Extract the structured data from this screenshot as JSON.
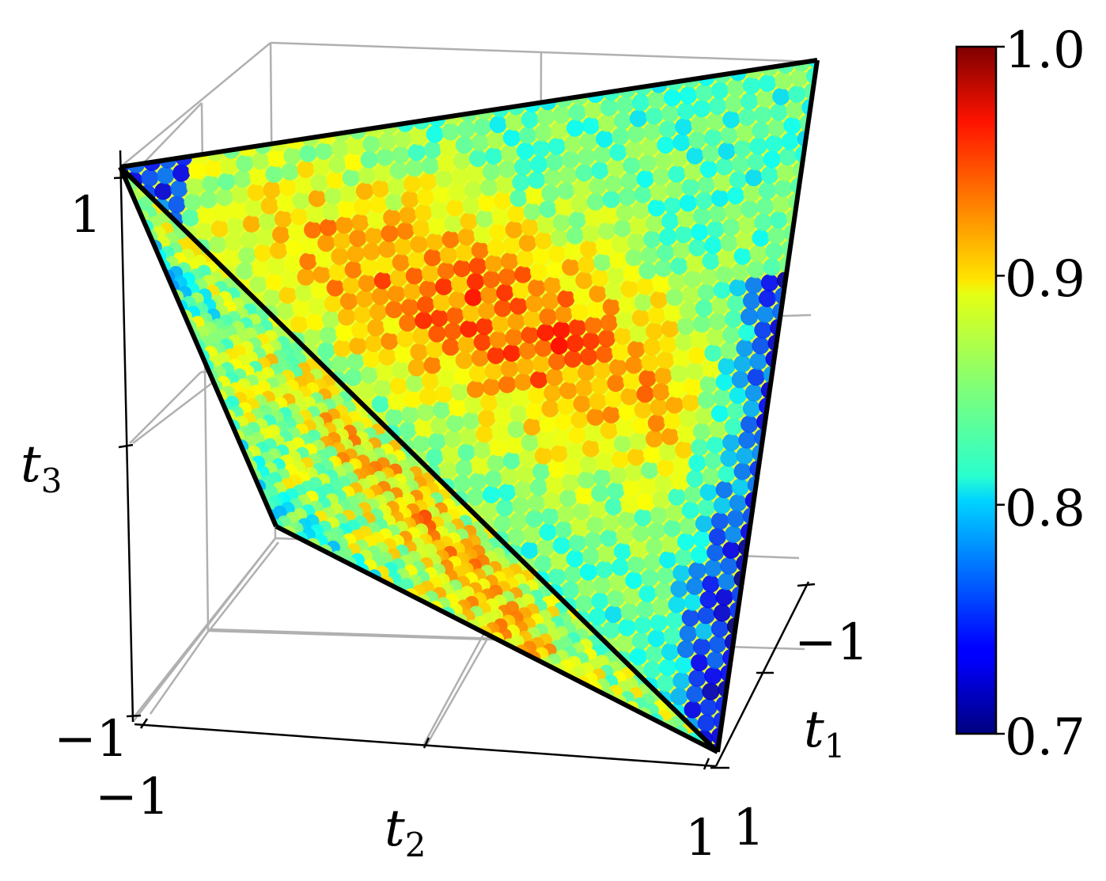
{
  "chart_data": {
    "type": "scatter",
    "projection": "3d",
    "description_of_marks": "points on the faces of a tetrahedron-like simplex, colored by value",
    "axes": {
      "x": {
        "label": "t",
        "label_sub": "1",
        "ticks": [
          "−1",
          "1"
        ],
        "lim": [
          -1,
          1
        ]
      },
      "y": {
        "label": "t",
        "label_sub": "2",
        "ticks": [
          "−1",
          "1"
        ],
        "lim": [
          -1,
          1
        ]
      },
      "z": {
        "label": "t",
        "label_sub": "3",
        "ticks": [
          "−1",
          "1"
        ],
        "lim": [
          -1,
          1
        ]
      }
    },
    "colorbar": {
      "cmap": "jet",
      "range": [
        0.7,
        1.0
      ],
      "ticks": [
        "1.0",
        "0.9",
        "0.8",
        "0.7"
      ],
      "tick_values": [
        1.0,
        0.9,
        0.8,
        0.7
      ]
    },
    "grid": true,
    "value_range": [
      0.72,
      0.97
    ]
  }
}
